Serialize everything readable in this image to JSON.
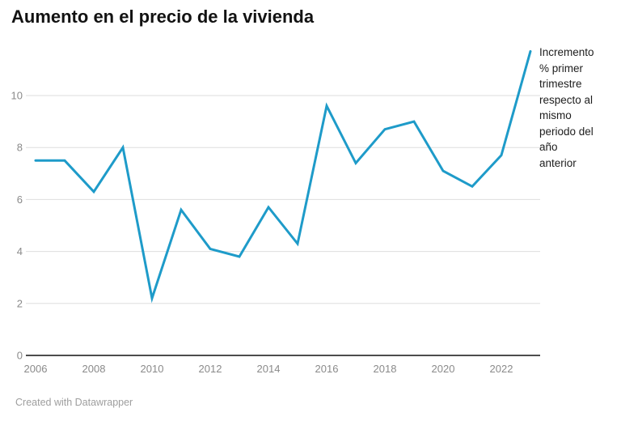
{
  "title": "Aumento en el precio de la vivienda",
  "footer": "Created with Datawrapper",
  "annotation": {
    "full_text": "Incremento % primer trimestre respecto al mismo periodo del año anterior",
    "lines": [
      "Incremento",
      "% primer",
      "trimestre",
      "respecto al",
      "mismo",
      "periodo del",
      "año",
      "anterior"
    ]
  },
  "colors": {
    "line": "#1e9bc9",
    "grid": "#dedede",
    "axis_baseline": "#4d4d4d",
    "tick_label": "#8a8a8a",
    "title_text": "#121212",
    "annotation_text": "#1d1d1d",
    "footer_text": "#9e9e9e",
    "background": "#ffffff"
  },
  "chart_data": {
    "type": "line",
    "title": "Aumento en el precio de la vivienda",
    "annotation": "Incremento % primer trimestre respecto al mismo periodo del año anterior",
    "x": [
      2006,
      2007,
      2008,
      2009,
      2010,
      2011,
      2012,
      2013,
      2014,
      2015,
      2016,
      2017,
      2018,
      2019,
      2020,
      2021,
      2022,
      2023
    ],
    "values": [
      7.5,
      7.5,
      6.3,
      8.0,
      2.2,
      5.6,
      4.1,
      3.8,
      5.7,
      4.3,
      9.6,
      7.4,
      8.7,
      9.0,
      7.1,
      6.5,
      7.7,
      11.7
    ],
    "x_tick_labels": [
      "2006",
      "2008",
      "2010",
      "2012",
      "2014",
      "2016",
      "2018",
      "2020",
      "2022"
    ],
    "y_ticks": [
      0,
      2,
      4,
      6,
      8,
      10
    ],
    "xlabel": "",
    "ylabel": "",
    "ylim": [
      0,
      11.9
    ],
    "grid": true,
    "legend": "none"
  }
}
